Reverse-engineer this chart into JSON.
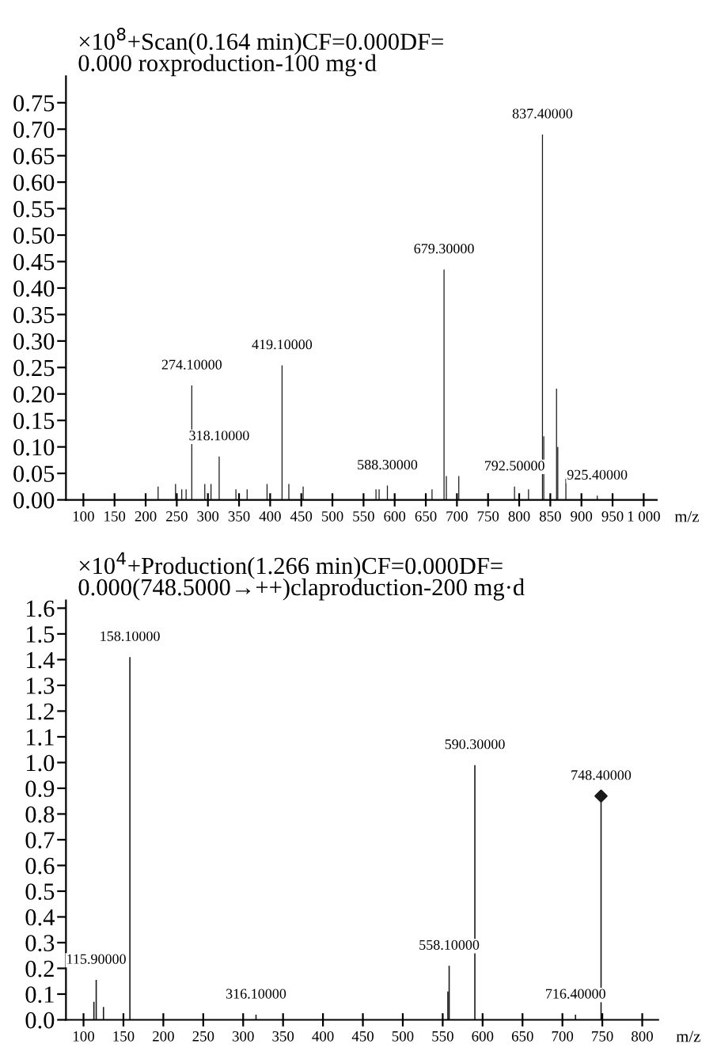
{
  "chart_data": [
    {
      "type": "bar",
      "title": "×10$^{8}$+Scan(0.164 min)CF=0.000DF=\n0.000 roxproduction-100 mg·d",
      "xlabel": "m/z",
      "color": "#1a1a1a",
      "x": [
        220,
        248,
        258,
        265,
        274.1,
        295,
        305,
        318.1,
        345,
        363,
        395,
        419.1,
        430,
        453,
        570,
        575,
        588.3,
        660,
        679.3,
        683,
        703,
        792.5,
        815,
        837.4,
        839.5,
        860,
        862,
        875,
        925.4
      ],
      "values": [
        0.025,
        0.03,
        0.02,
        0.02,
        0.216,
        0.03,
        0.03,
        0.082,
        0.02,
        0.02,
        0.03,
        0.254,
        0.03,
        0.025,
        0.02,
        0.02,
        0.027,
        0.02,
        0.435,
        0.045,
        0.045,
        0.025,
        0.02,
        0.69,
        0.12,
        0.21,
        0.1,
        0.04,
        0.008
      ],
      "xlim": [
        72,
        1021
      ],
      "ylim": [
        0,
        0.8
      ],
      "xticks": [
        100,
        150,
        200,
        250,
        300,
        350,
        400,
        450,
        500,
        550,
        600,
        650,
        700,
        750,
        800,
        850,
        900,
        950,
        {
          "value": 1000,
          "label": "1 000"
        }
      ],
      "yticks": [
        {
          "value": 0,
          "label": "0.00"
        },
        {
          "value": 0.05,
          "label": "0.05"
        },
        {
          "value": 0.1,
          "label": "0.10"
        },
        {
          "value": 0.15,
          "label": "0.15"
        },
        {
          "value": 0.2,
          "label": "0.20"
        },
        {
          "value": 0.25,
          "label": "0.25"
        },
        {
          "value": 0.3,
          "label": "0.30"
        },
        {
          "value": 0.35,
          "label": "0.35"
        },
        {
          "value": 0.4,
          "label": "0.40"
        },
        {
          "value": 0.45,
          "label": "0.45"
        },
        {
          "value": 0.5,
          "label": "0.50"
        },
        {
          "value": 0.55,
          "label": "0.55"
        },
        {
          "value": 0.6,
          "label": "0.60"
        },
        {
          "value": 0.65,
          "label": "0.65"
        },
        {
          "value": 0.7,
          "label": "0.70"
        },
        {
          "value": 0.75,
          "label": "0.75"
        }
      ],
      "annotations": [
        {
          "text": "274.10000",
          "x": 274.1,
          "y": 0.216
        },
        {
          "text": "318.10000",
          "x": 318.1,
          "y": 0.082
        },
        {
          "text": "419.10000",
          "x": 419.1,
          "y": 0.254
        },
        {
          "text": "588.30000",
          "x": 588.3,
          "y": 0.027
        },
        {
          "text": "679.30000",
          "x": 679.3,
          "y": 0.435
        },
        {
          "text": "792.50000",
          "x": 792.5,
          "y": 0.025
        },
        {
          "text": "837.40000",
          "x": 837.4,
          "y": 0.69
        },
        {
          "text": "925.40000",
          "x": 925.4,
          "y": 0.008
        }
      ]
    },
    {
      "type": "bar",
      "title": "×10$^{4}$+Production(1.266 min)CF=0.000DF=\n0.000(748.5000→++)claproduction-200 mg·d",
      "xlabel": "m/z",
      "series": [
        {
          "type": "bar",
          "color": "#1a1a1a",
          "x": [
            113,
            115.9,
            125,
            158.1,
            316.1,
            556.5,
            558.1,
            590.3,
            716.4,
            748.4
          ],
          "values": [
            0.07,
            0.155,
            0.05,
            1.41,
            0.02,
            0.11,
            0.21,
            0.99,
            0.02,
            0.85
          ]
        },
        {
          "type": "scatter",
          "color": "#1a1a1a",
          "marker": "diamond",
          "x": [
            748.4
          ],
          "values": [
            0.87
          ]
        }
      ],
      "xlim": [
        78,
        820
      ],
      "ylim": [
        0,
        1.63
      ],
      "xticks": [
        100,
        150,
        200,
        250,
        300,
        350,
        400,
        450,
        500,
        550,
        600,
        650,
        700,
        750,
        800
      ],
      "yticks": [
        {
          "value": 0,
          "label": "0.0"
        },
        0.1,
        0.2,
        0.3,
        0.4,
        0.5,
        0.6,
        0.7,
        0.8,
        0.9,
        {
          "value": 1,
          "label": "1.0"
        },
        1.1,
        1.2,
        1.3,
        1.4,
        1.5,
        1.6
      ],
      "annotations": [
        {
          "text": "115.90000",
          "x": 115.9,
          "y": 0.155
        },
        {
          "text": "158.10000",
          "x": 158.1,
          "y": 1.41
        },
        {
          "text": "316.10000",
          "x": 316.1,
          "y": 0.02
        },
        {
          "text": "558.10000",
          "x": 558.1,
          "y": 0.21
        },
        {
          "text": "590.30000",
          "x": 590.3,
          "y": 0.99
        },
        {
          "text": "716.40000",
          "x": 716.4,
          "y": 0.02
        },
        {
          "text": "748.40000",
          "x": 748.4,
          "y": 0.87
        }
      ]
    }
  ]
}
